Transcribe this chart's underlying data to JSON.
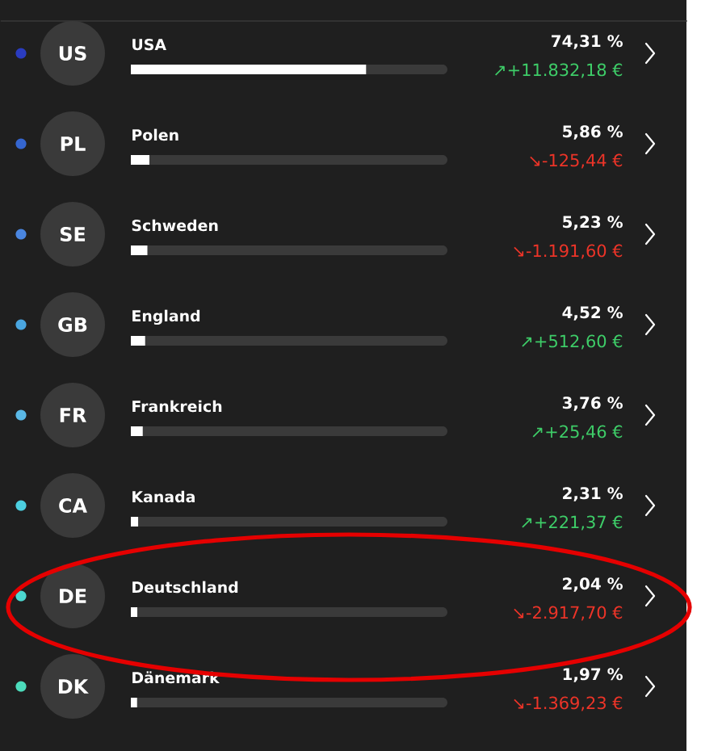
{
  "chart_data": {
    "type": "bar",
    "orientation": "horizontal",
    "color": "#ffffff",
    "xlim": [
      0,
      100
    ],
    "tick_labels": "y",
    "categories": [
      "USA",
      "Polen",
      "Schweden",
      "England",
      "Frankreich",
      "Kanada",
      "Deutschland",
      "Dänemark"
    ],
    "values": [
      74.31,
      5.86,
      5.23,
      4.52,
      3.76,
      2.31,
      2.04,
      1.97
    ],
    "value_labels": [
      "74,31 %",
      "5,86 %",
      "5,23 %",
      "4,52 %",
      "3,76 %",
      "2,31 %",
      "2,04 %",
      "1,97 %"
    ],
    "annotations": [
      "US",
      "↗+11.832,18 €",
      "PL",
      "↘-125,44 €",
      "SE",
      "↘-1.191,60 €",
      "GB",
      "↗+512,60 €",
      "FR",
      "↗+25,46 €",
      "CA",
      "↗+221,37 €",
      "DE",
      "↘-2.917,70 €",
      "DK",
      "↘-1.369,23 €"
    ]
  }
}
